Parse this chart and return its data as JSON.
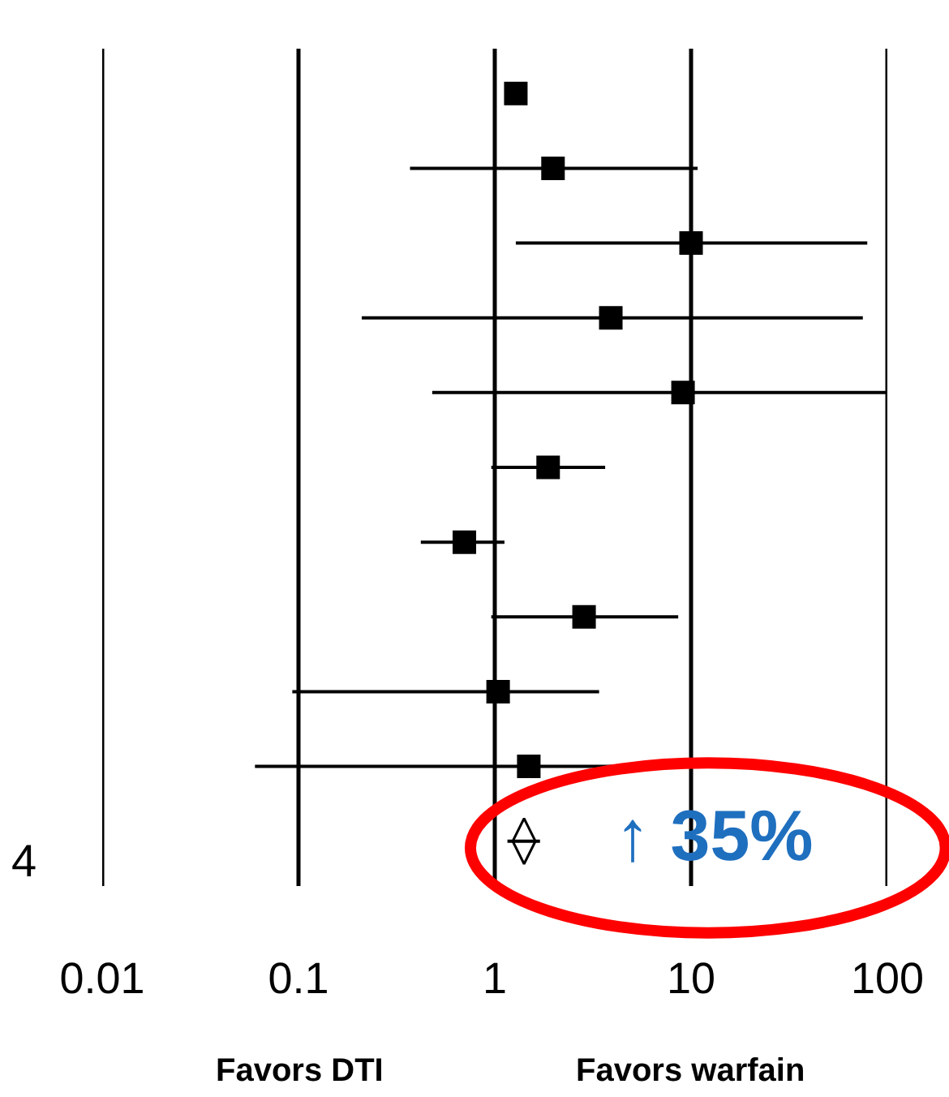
{
  "chart_data": {
    "type": "scatter",
    "orientation": "horizontal",
    "categories": [
      null,
      null,
      null,
      null,
      null,
      null,
      null,
      null,
      null,
      null,
      null
    ],
    "series": [
      {
        "marker": "square",
        "color": "#000000",
        "values": [
          1.28,
          1.98,
          10,
          3.9,
          9.1,
          1.87,
          0.7,
          2.85,
          1.04,
          1.49,
          null
        ],
        "errors": [
          null,
          [
            0.37,
            10.8
          ],
          [
            1.28,
            79
          ],
          [
            0.21,
            75
          ],
          [
            0.48,
            100
          ],
          [
            0.96,
            3.65
          ],
          [
            0.42,
            1.12
          ],
          [
            0.96,
            8.6
          ],
          [
            0.093,
            3.4
          ],
          [
            0.06,
            36
          ],
          null
        ]
      },
      {
        "marker": "diamond",
        "color": "#000000",
        "values": [
          null,
          null,
          null,
          null,
          null,
          null,
          null,
          null,
          null,
          null,
          1.41
        ],
        "errors": [
          null,
          null,
          null,
          null,
          null,
          null,
          null,
          null,
          null,
          null,
          [
            1.16,
            1.7
          ]
        ]
      }
    ],
    "log": "x",
    "xlim": [
      0.01,
      100
    ],
    "xticks": [
      0.01,
      0.1,
      1,
      10,
      100
    ],
    "grid": "x",
    "tick_labels": "x",
    "annotations": [
      "4",
      "↑ 35%",
      "Favors DTI",
      "Favors warfain"
    ]
  }
}
